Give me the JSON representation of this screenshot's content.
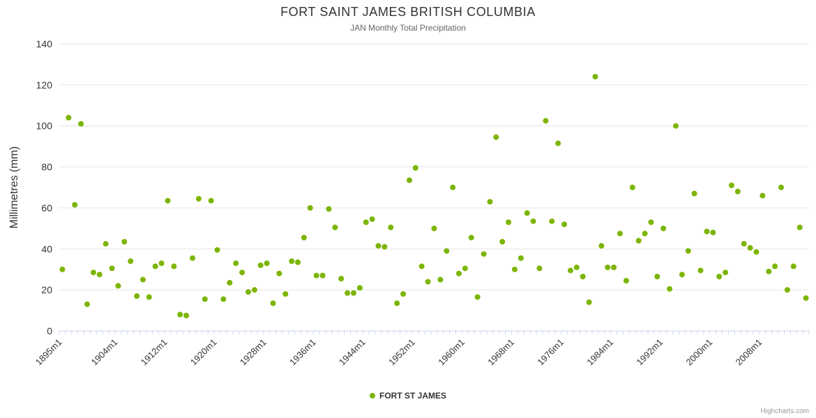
{
  "title": "FORT SAINT JAMES BRITISH COLUMBIA",
  "subtitle": "JAN Monthly Total Precipitation",
  "credits": "Highcharts.com",
  "chart_data": {
    "type": "scatter",
    "title": "FORT SAINT JAMES BRITISH COLUMBIA",
    "subtitle": "JAN Monthly Total Precipitation",
    "ylabel": "Millimetres (mm)",
    "ylim": [
      0,
      140
    ],
    "ytick_interval": 20,
    "grid": true,
    "legend_position": "bottom-center",
    "x_start_year": 1895,
    "x_suffix": "m1",
    "xtick_years": [
      1895,
      1904,
      1912,
      1920,
      1928,
      1936,
      1944,
      1952,
      1960,
      1968,
      1976,
      1984,
      1992,
      2000,
      2008
    ],
    "series": [
      {
        "name": "FORT ST JAMES",
        "color": "#7cb500",
        "points": [
          [
            1895,
            30
          ],
          [
            1896,
            104
          ],
          [
            1897,
            61.5
          ],
          [
            1898,
            101
          ],
          [
            1899,
            13
          ],
          [
            1900,
            28.5
          ],
          [
            1901,
            27.5
          ],
          [
            1902,
            42.5
          ],
          [
            1903,
            30.5
          ],
          [
            1904,
            22
          ],
          [
            1905,
            43.5
          ],
          [
            1906,
            34
          ],
          [
            1907,
            17
          ],
          [
            1908,
            25
          ],
          [
            1909,
            16.5
          ],
          [
            1910,
            31.5
          ],
          [
            1911,
            33
          ],
          [
            1912,
            63.5
          ],
          [
            1913,
            31.5
          ],
          [
            1914,
            8
          ],
          [
            1915,
            7.5
          ],
          [
            1916,
            35.5
          ],
          [
            1917,
            64.5
          ],
          [
            1918,
            15.5
          ],
          [
            1919,
            63.5
          ],
          [
            1920,
            39.5
          ],
          [
            1921,
            15.5
          ],
          [
            1922,
            23.5
          ],
          [
            1923,
            33
          ],
          [
            1924,
            28.5
          ],
          [
            1925,
            19
          ],
          [
            1926,
            20
          ],
          [
            1927,
            32
          ],
          [
            1928,
            33
          ],
          [
            1929,
            13.5
          ],
          [
            1930,
            28
          ],
          [
            1931,
            18
          ],
          [
            1932,
            34
          ],
          [
            1933,
            33.5
          ],
          [
            1934,
            45.5
          ],
          [
            1935,
            60
          ],
          [
            1936,
            27
          ],
          [
            1937,
            27
          ],
          [
            1938,
            59.5
          ],
          [
            1939,
            50.5
          ],
          [
            1940,
            25.5
          ],
          [
            1941,
            18.5
          ],
          [
            1942,
            18.5
          ],
          [
            1943,
            21
          ],
          [
            1944,
            53
          ],
          [
            1945,
            54.5
          ],
          [
            1946,
            41.5
          ],
          [
            1947,
            41
          ],
          [
            1948,
            50.5
          ],
          [
            1949,
            13.5
          ],
          [
            1950,
            18
          ],
          [
            1951,
            73.5
          ],
          [
            1952,
            79.5
          ],
          [
            1953,
            31.5
          ],
          [
            1954,
            24
          ],
          [
            1955,
            50
          ],
          [
            1956,
            25
          ],
          [
            1957,
            39
          ],
          [
            1958,
            70
          ],
          [
            1959,
            28
          ],
          [
            1960,
            30.5
          ],
          [
            1961,
            45.5
          ],
          [
            1962,
            16.5
          ],
          [
            1963,
            37.5
          ],
          [
            1964,
            63
          ],
          [
            1965,
            94.5
          ],
          [
            1966,
            43.5
          ],
          [
            1967,
            53
          ],
          [
            1968,
            30
          ],
          [
            1969,
            35.5
          ],
          [
            1970,
            57.5
          ],
          [
            1971,
            53.5
          ],
          [
            1972,
            30.5
          ],
          [
            1973,
            102.5
          ],
          [
            1974,
            53.5
          ],
          [
            1975,
            91.5
          ],
          [
            1976,
            52
          ],
          [
            1977,
            29.5
          ],
          [
            1978,
            31
          ],
          [
            1979,
            26.5
          ],
          [
            1980,
            14
          ],
          [
            1981,
            124
          ],
          [
            1982,
            41.5
          ],
          [
            1983,
            31
          ],
          [
            1984,
            31
          ],
          [
            1985,
            47.5
          ],
          [
            1986,
            24.5
          ],
          [
            1987,
            70
          ],
          [
            1988,
            44
          ],
          [
            1989,
            47.5
          ],
          [
            1990,
            53
          ],
          [
            1991,
            26.5
          ],
          [
            1992,
            50
          ],
          [
            1993,
            20.5
          ],
          [
            1994,
            100
          ],
          [
            1995,
            27.5
          ],
          [
            1996,
            39
          ],
          [
            1997,
            67
          ],
          [
            1998,
            29.5
          ],
          [
            1999,
            48.5
          ],
          [
            2000,
            48
          ],
          [
            2001,
            26.5
          ],
          [
            2002,
            28.5
          ],
          [
            2003,
            71
          ],
          [
            2004,
            68
          ],
          [
            2005,
            42.5
          ],
          [
            2006,
            40.5
          ],
          [
            2007,
            38.5
          ],
          [
            2008,
            66
          ],
          [
            2009,
            29
          ],
          [
            2010,
            31.5
          ],
          [
            2011,
            70
          ],
          [
            2012,
            20
          ],
          [
            2013,
            31.5
          ],
          [
            2014,
            50.5
          ],
          [
            2015,
            16
          ]
        ]
      }
    ]
  }
}
